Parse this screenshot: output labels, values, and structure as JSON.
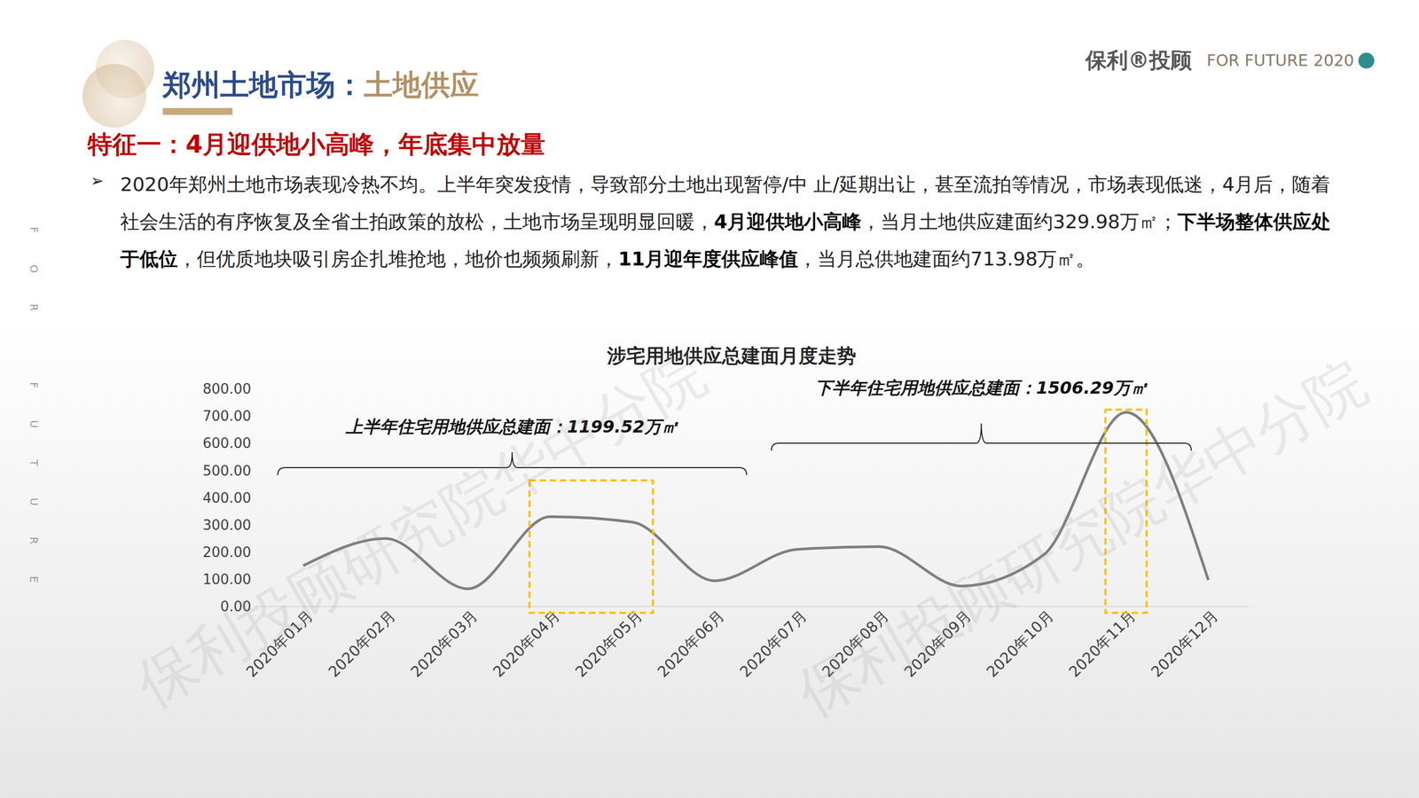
{
  "header": {
    "title_parts": [
      "郑州土地市场：",
      "土地供应"
    ],
    "brand": "保利®投顾",
    "tagline": "FOR FUTURE",
    "year": "2020",
    "side_text": "FOR FUTURE"
  },
  "heading": "特征一：4月迎供地小高峰，年底集中放量",
  "bullet": "➢",
  "paragraph": [
    {
      "text": "2020年郑州土地市场表现冷热不均。上半年突发疫情，导致部分土地出现暂停/中 止/延期出让，甚至流拍等情况，市场表现低迷，4月后，随着社会生活的有序恢复及全省土拍政策的放松，土地市场呈现明显回暖，",
      "bold": false
    },
    {
      "text": "4月迎供地小高峰",
      "bold": true
    },
    {
      "text": "，当月土地供应建面约329.98万㎡；",
      "bold": false
    },
    {
      "text": "下半场整体供应处于低位",
      "bold": true
    },
    {
      "text": "，但优质地块吸引房企扎堆抢地，地价也频频刷新，",
      "bold": false
    },
    {
      "text": "11月迎年度供应峰值",
      "bold": true
    },
    {
      "text": "，当月总供地建面约713.98万㎡。",
      "bold": false
    }
  ],
  "watermark": "保利投顾研究院华中分院",
  "chart_data": {
    "type": "line",
    "title": "涉宅用地供应总建面月度走势",
    "categories": [
      "2020年01月",
      "2020年02月",
      "2020年03月",
      "2020年04月",
      "2020年05月",
      "2020年06月",
      "2020年07月",
      "2020年08月",
      "2020年09月",
      "2020年10月",
      "2020年11月",
      "2020年12月"
    ],
    "values": [
      150,
      250,
      65,
      329.98,
      310,
      94.54,
      210,
      220,
      75,
      190,
      713.98,
      97.31
    ],
    "color": "#7f7f7f",
    "ylim": [
      0,
      800
    ],
    "yticks": [
      {
        "value": 0,
        "label": "0.00"
      },
      {
        "value": 100,
        "label": "100.00"
      },
      {
        "value": 200,
        "label": "200.00"
      },
      {
        "value": 300,
        "label": "300.00"
      },
      {
        "value": 400,
        "label": "400.00"
      },
      {
        "value": 500,
        "label": "500.00"
      },
      {
        "value": 600,
        "label": "600.00"
      },
      {
        "value": 700,
        "label": "700.00"
      },
      {
        "value": 800,
        "label": "800.00"
      }
    ],
    "grid": false,
    "annotations": [
      "上半年住宅用地供应总建面：1199.52万㎡",
      "下半年住宅用地供应总建面：1506.29万㎡"
    ]
  }
}
